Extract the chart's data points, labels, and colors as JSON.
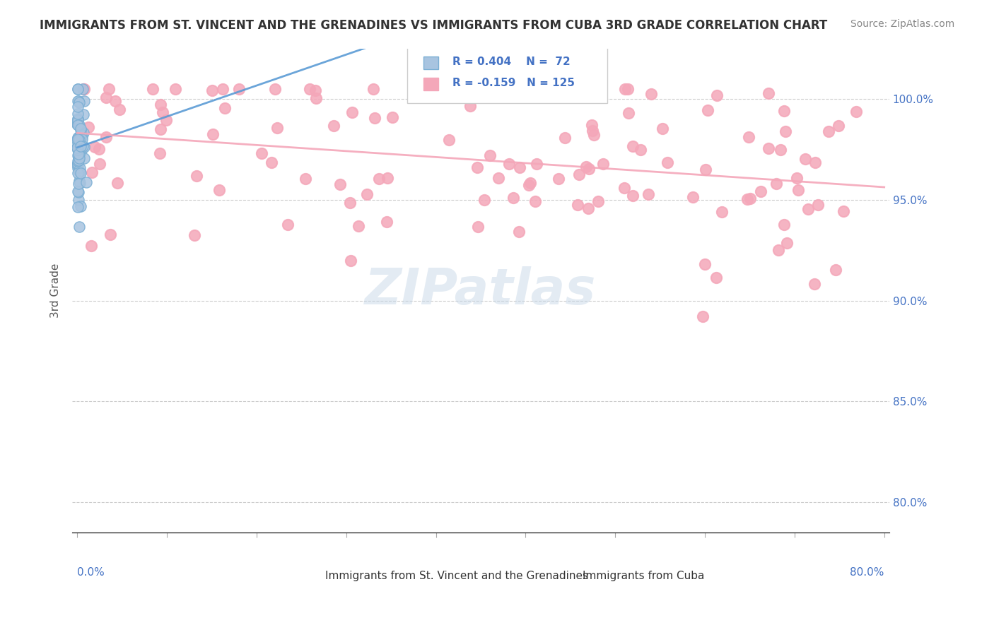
{
  "title": "IMMIGRANTS FROM ST. VINCENT AND THE GRENADINES VS IMMIGRANTS FROM CUBA 3RD GRADE CORRELATION CHART",
  "source": "Source: ZipAtlas.com",
  "ylabel": "3rd Grade",
  "yaxis_values": [
    0.8,
    0.85,
    0.9,
    0.95,
    1.0
  ],
  "xlim": [
    0.0,
    0.8
  ],
  "ylim": [
    0.785,
    1.025
  ],
  "legend_r1": "0.404",
  "legend_n1": "72",
  "legend_r2": "-0.159",
  "legend_n2": "125",
  "color_blue": "#a8c4e0",
  "color_blue_edge": "#7bafd4",
  "color_pink": "#f4a7b9",
  "color_blue_text": "#4472c4",
  "color_line_blue": "#5b9bd5",
  "color_line_pink": "#f4a7b9",
  "label1": "Immigrants from St. Vincent and the Grenadines",
  "label2": "Immigrants from Cuba",
  "watermark": "ZIPatlas"
}
